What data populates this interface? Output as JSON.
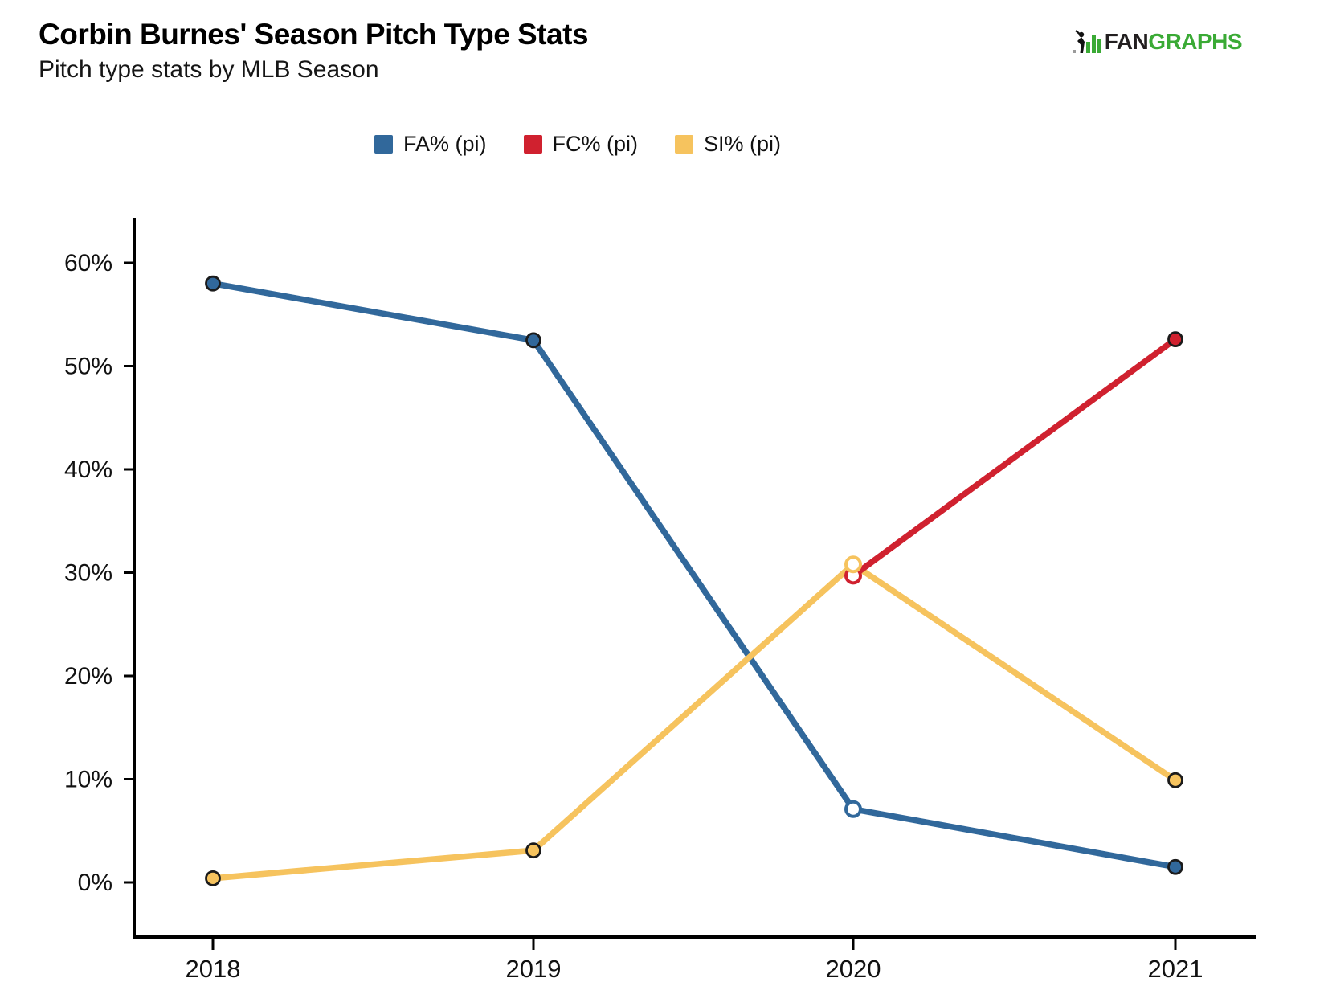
{
  "logo": {
    "fan": "FAN",
    "graphs": "GRAPHS",
    "green": "#3AAA35",
    "dark": "#231F20"
  },
  "chart_data": {
    "type": "line",
    "title": "Corbin Burnes' Season Pitch Type Stats",
    "subtitle": "Pitch type stats by MLB Season",
    "categories": [
      "2018",
      "2019",
      "2020",
      "2021"
    ],
    "series": [
      {
        "name": "FA% (pi)",
        "color": "#31689B",
        "values": [
          58.0,
          52.5,
          7.1,
          1.5
        ],
        "open_points": [
          false,
          false,
          true,
          false
        ]
      },
      {
        "name": "FC% (pi)",
        "color": "#D0212F",
        "values": [
          null,
          null,
          29.7,
          52.6
        ],
        "open_points": [
          false,
          false,
          true,
          false
        ]
      },
      {
        "name": "SI% (pi)",
        "color": "#F6C35E",
        "values": [
          0.4,
          3.1,
          30.8,
          9.9
        ],
        "open_points": [
          false,
          false,
          true,
          false
        ]
      }
    ],
    "yticks": [
      0,
      10,
      20,
      30,
      40,
      50,
      60
    ],
    "ytick_suffix": "%",
    "ylim": [
      -5.3,
      64.3
    ],
    "xlabel": "",
    "ylabel": "",
    "grid": false,
    "legend_position": "top"
  }
}
